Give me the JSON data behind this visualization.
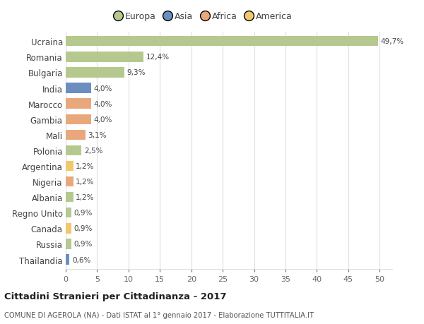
{
  "countries": [
    "Ucraina",
    "Romania",
    "Bulgaria",
    "India",
    "Marocco",
    "Gambia",
    "Mali",
    "Polonia",
    "Argentina",
    "Nigeria",
    "Albania",
    "Regno Unito",
    "Canada",
    "Russia",
    "Thailandia"
  ],
  "values": [
    49.7,
    12.4,
    9.3,
    4.0,
    4.0,
    4.0,
    3.1,
    2.5,
    1.2,
    1.2,
    1.2,
    0.9,
    0.9,
    0.9,
    0.6
  ],
  "labels": [
    "49,7%",
    "12,4%",
    "9,3%",
    "4,0%",
    "4,0%",
    "4,0%",
    "3,1%",
    "2,5%",
    "1,2%",
    "1,2%",
    "1,2%",
    "0,9%",
    "0,9%",
    "0,9%",
    "0,6%"
  ],
  "colors": [
    "#b5c98e",
    "#b5c98e",
    "#b5c98e",
    "#6b8ebf",
    "#e8a87c",
    "#e8a87c",
    "#e8a87c",
    "#b5c98e",
    "#f0c96e",
    "#e8a87c",
    "#b5c98e",
    "#b5c98e",
    "#f0c96e",
    "#b5c98e",
    "#6b8ebf"
  ],
  "legend_labels": [
    "Europa",
    "Asia",
    "Africa",
    "America"
  ],
  "legend_colors": [
    "#b5c98e",
    "#6b8ebf",
    "#e8a87c",
    "#f0c96e"
  ],
  "title": "Cittadini Stranieri per Cittadinanza - 2017",
  "subtitle": "COMUNE DI AGEROLA (NA) - Dati ISTAT al 1° gennaio 2017 - Elaborazione TUTTITALIA.IT",
  "xlim": [
    0,
    52
  ],
  "xticks": [
    0,
    5,
    10,
    15,
    20,
    25,
    30,
    35,
    40,
    45,
    50
  ],
  "background_color": "#ffffff",
  "grid_color": "#dddddd"
}
